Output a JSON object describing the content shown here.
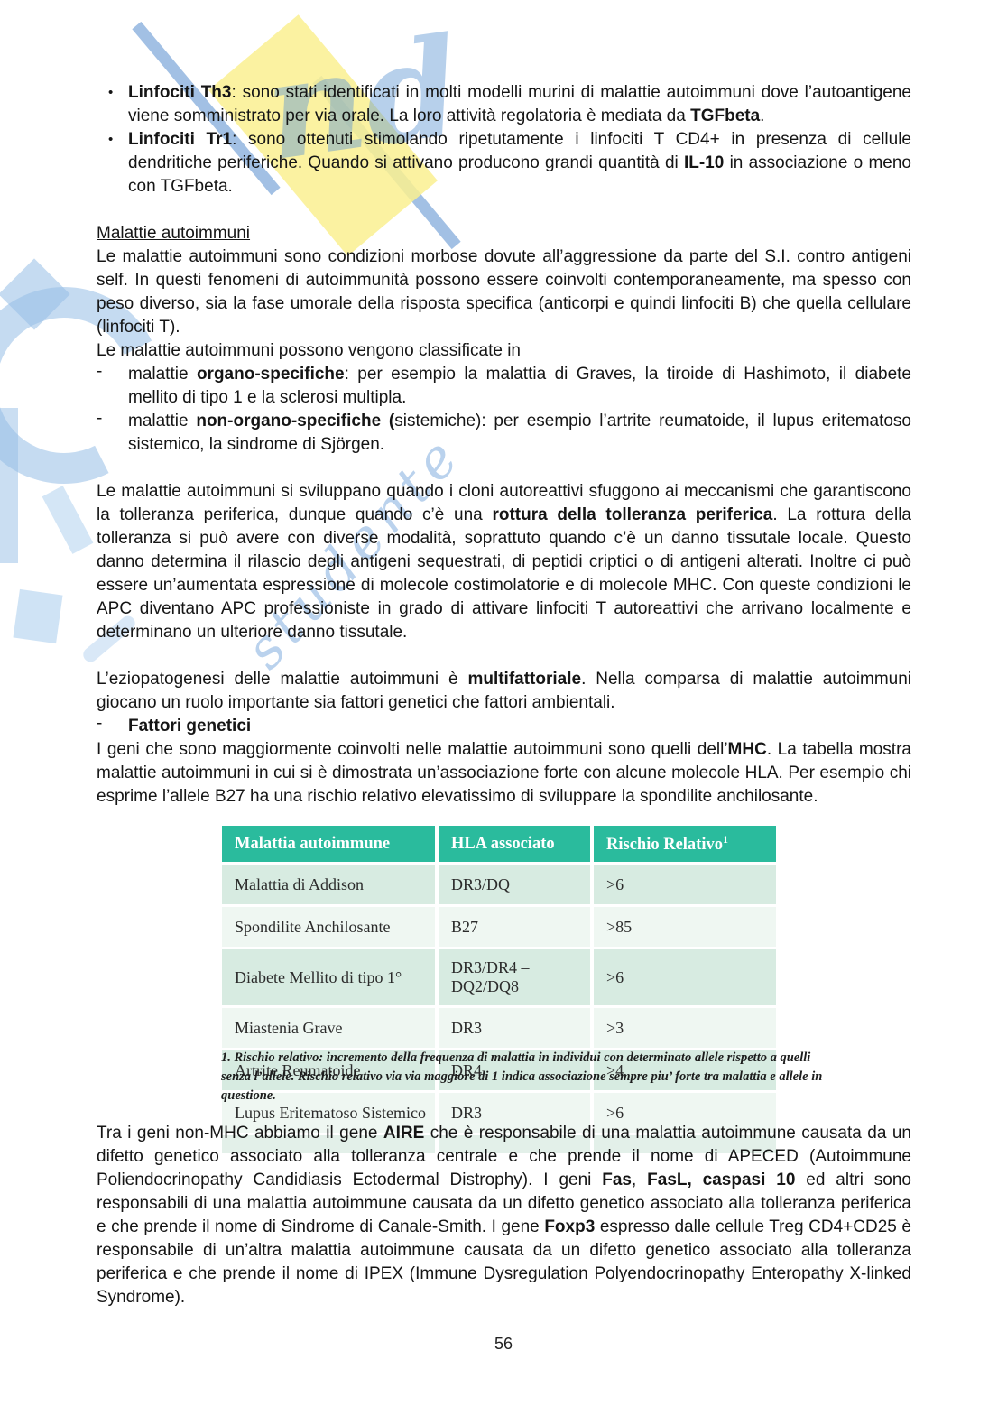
{
  "page": {
    "number": "56"
  },
  "colors": {
    "table_header_bg": "#2ABB9D",
    "table_row_dark": "#D7EBE1",
    "table_row_light": "#EFF7F2",
    "table_strip": "#E3F0E9",
    "watermark_yellow": "#FAF091",
    "watermark_blue_strong": "#558CCD",
    "watermark_blue_light": "#96BEE6"
  },
  "watermark": {
    "cursive_fragment": "nd",
    "script_text": "studente"
  },
  "content": {
    "bullet_items": [
      {
        "segments": [
          {
            "t": "Linfociti Th3",
            "b": true
          },
          {
            "t": ": sono stati identificati in molti modelli murini di malattie autoimmuni dove l’autoantigene viene somministrato per via orale. La loro attività regolatoria è mediata da "
          },
          {
            "t": "TGFbeta",
            "b": true
          },
          {
            "t": "."
          }
        ]
      },
      {
        "segments": [
          {
            "t": "Linfociti Tr1",
            "b": true
          },
          {
            "t": ": sono ottenuti stimolando ripetutamente i linfociti T CD4+ in presenza di  cellule dendritiche periferiche. Quando si attivano producono grandi quantità di "
          },
          {
            "t": "IL-10",
            "b": true
          },
          {
            "t": " in associazione o meno con TGFbeta."
          }
        ]
      }
    ],
    "section_heading": "Malattie autoimmuni",
    "paragraph_intro": {
      "segments": [
        {
          "t": "Le malattie autoimmuni sono condizioni morbose dovute all’aggressione da parte del S.I. contro antigeni self.  In questi fenomeni di autoimmunità possono essere coinvolti contemporaneamente, ma spesso con peso diverso, sia la fase umorale della risposta specifica (anticorpi e quindi linfociti B) che quella cellulare (linfociti T)."
        }
      ]
    },
    "classification_line": {
      "segments": [
        {
          "t": "Le malattie autoimmuni possono vengono classificate in"
        }
      ]
    },
    "dash_items": [
      {
        "segments": [
          {
            "t": "malattie "
          },
          {
            "t": "organo-specifiche",
            "b": true
          },
          {
            "t": ": per esempio la malattia di Graves, la tiroide di Hashimoto, il diabete mellito di tipo 1 e la sclerosi multipla."
          }
        ]
      },
      {
        "segments": [
          {
            "t": "malattie "
          },
          {
            "t": "non-organo-specifiche (",
            "b": true
          },
          {
            "t": "sistemiche): per esempio l’artrite reumatoide, il lupus eritematoso sistemico, la sindrome di Sjörgen."
          }
        ]
      }
    ],
    "paragraph_tolerance": {
      "segments": [
        {
          "t": "Le malattie autoimmuni si sviluppano quando i cloni autoreattivi sfuggono ai meccanismi che garantiscono la tolleranza periferica, dunque quando c’è una "
        },
        {
          "t": "rottura della tolleranza periferica",
          "b": true
        },
        {
          "t": ". La rottura della tolleranza si può avere con diverse modalità, soprattuto quando c’è un danno tissutale locale. Questo danno determina il rilascio degli antigeni sequestrati, di peptidi criptici o di antigeni alterati. Inoltre ci può essere un’aumentata espressione di molecole costimolatorie e di molecole MHC. Con queste condizioni le APC diventano APC professioniste in grado di attivare linfociti T autoreattivi che arrivano localmente e determinano un ulteriore danno tissutale."
        }
      ]
    },
    "paragraph_etiology": {
      "segments": [
        {
          "t": "L’eziopatogenesi delle malattie autoimmuni è "
        },
        {
          "t": "multifattoriale",
          "b": true
        },
        {
          "t": ". Nella comparsa di malattie autoimmuni giocano un ruolo importante sia fattori genetici che fattori ambientali."
        }
      ]
    },
    "genetic_heading": {
      "segments": [
        {
          "t": "Fattori genetici",
          "b": true
        }
      ]
    },
    "paragraph_mhc": {
      "segments": [
        {
          "t": "I geni che sono maggiormente coinvolti nelle malattie autoimmuni sono quelli dell’"
        },
        {
          "t": "MHC",
          "b": true
        },
        {
          "t": ". La tabella mostra malattie autoimmuni in cui si è dimostrata un’associazione forte con alcune molecole HLA. Per esempio chi esprime l’allele B27 ha una rischio relativo elevatissimo di sviluppare la spondilite anchilosante."
        }
      ]
    },
    "paragraph_nonmhc": {
      "segments": [
        {
          "t": "Tra i geni non-MHC abbiamo il gene "
        },
        {
          "t": "AIRE",
          "b": true
        },
        {
          "t": " che è responsabile di una malattia autoimmune causata da un difetto genetico associato alla tolleranza centrale e che prende il nome di APECED (Autoimmune Poliendocrinopathy Candidiasis Ectodermal Distrophy). I geni "
        },
        {
          "t": "Fas",
          "b": true
        },
        {
          "t": ", "
        },
        {
          "t": "FasL, caspasi 10",
          "b": true
        },
        {
          "t": " ed altri sono responsabili di una malattia autoimmune causata da un difetto genetico associato alla tolleranza periferica e che prende il nome di Sindrome di Canale-Smith. I gene "
        },
        {
          "t": "Foxp3",
          "b": true
        },
        {
          "t": " espresso dalle cellule Treg CD4+CD25 è responsabile di un’altra malattia autoimmune causata da un difetto genetico associato alla tolleranza periferica e che prende il nome di IPEX (Immune Dysregulation Polyendocrinopathy Enteropathy X-linked Syndrome)."
        }
      ]
    }
  },
  "table": {
    "headers": [
      {
        "label": "Malattia autoimmune",
        "sup": ""
      },
      {
        "label": "HLA associato",
        "sup": ""
      },
      {
        "label": "Rischio Relativo",
        "sup": "1"
      }
    ],
    "rows": [
      {
        "disease": "Malattia di Addison",
        "hla": "DR3/DQ",
        "risk": ">6"
      },
      {
        "disease": "Spondilite Anchilosante",
        "hla": "B27",
        "risk": ">85"
      },
      {
        "disease": "Diabete Mellito di tipo 1°",
        "hla": "DR3/DR4 – DQ2/DQ8",
        "risk": ">6"
      },
      {
        "disease": "Miastenia Grave",
        "hla": "DR3",
        "risk": ">3"
      },
      {
        "disease": "Artrite Reumatoide",
        "hla": "DR4",
        "risk": ">4"
      },
      {
        "disease": "Lupus Eritematoso Sistemico",
        "hla": "DR3",
        "risk": ">6"
      }
    ],
    "footnote": "1. Rischio relativo: incremento della  frequenza di malattia in individui con determinato allele rispetto a quelli senza l’allele. Rischio relativo via via maggiore di 1 indica associazione sempre piu’ forte tra malattia e allele in questione."
  }
}
